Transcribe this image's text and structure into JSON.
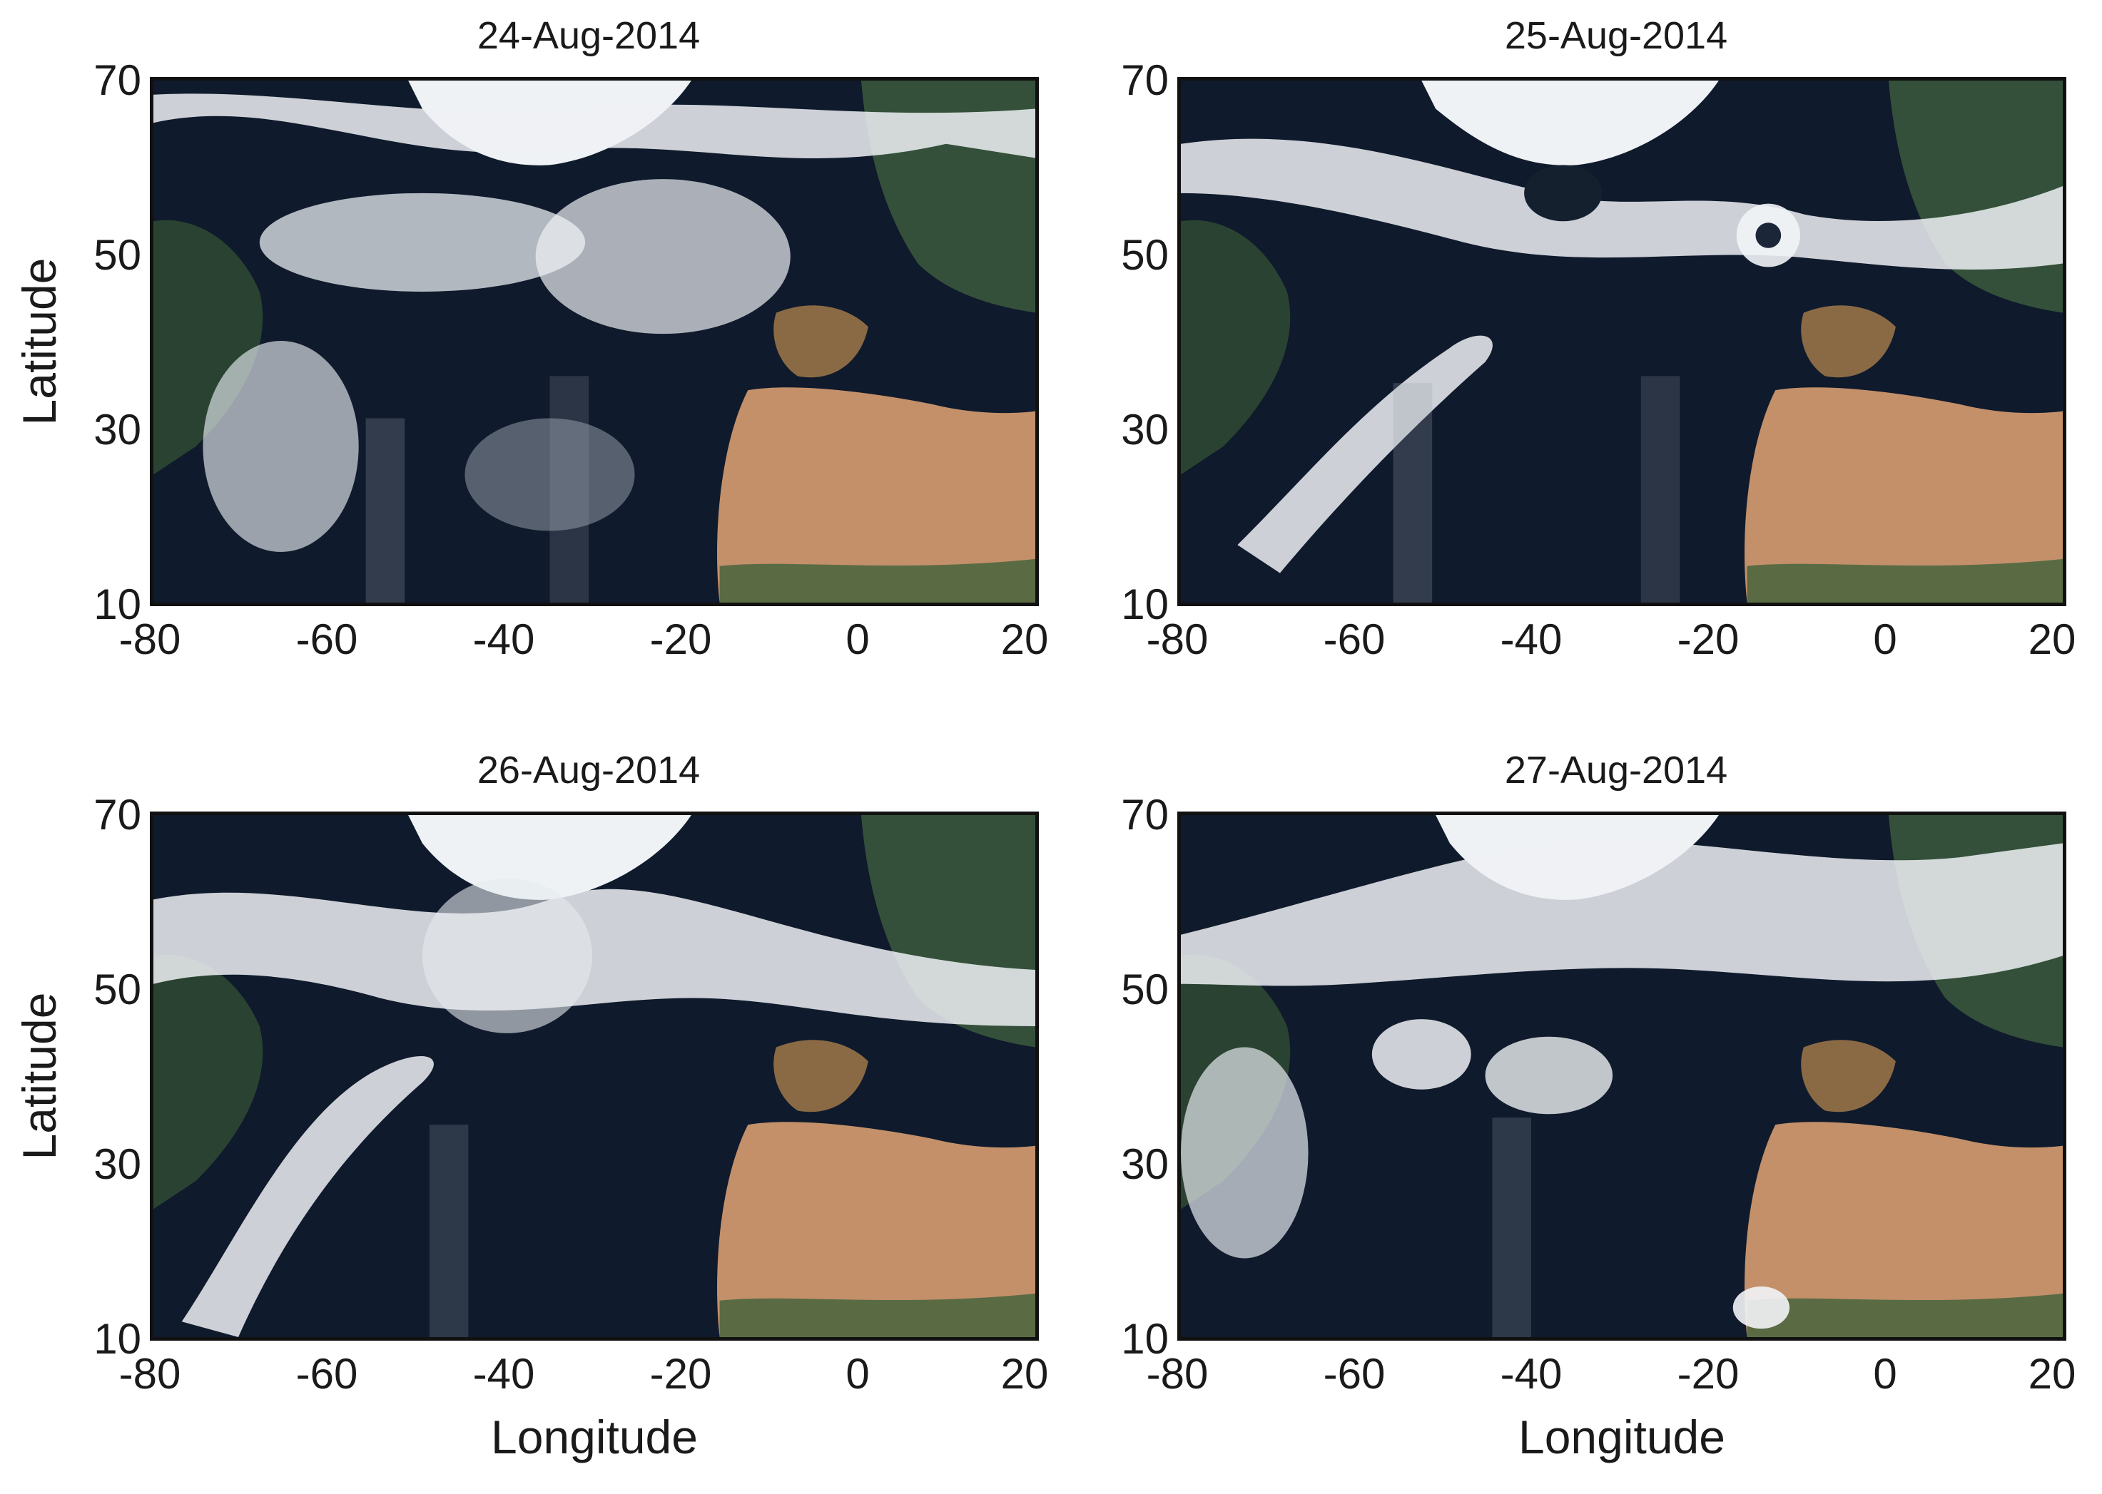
{
  "figure": {
    "panels": [
      {
        "title": "24-Aug-2014",
        "y_axis_label": "Latitude",
        "x_axis_label": "",
        "scene": "satellite-true-color-north-atlantic",
        "date": "24-Aug-2014"
      },
      {
        "title": "25-Aug-2014",
        "y_axis_label": "",
        "x_axis_label": "",
        "scene": "satellite-true-color-north-atlantic",
        "date": "25-Aug-2014"
      },
      {
        "title": "26-Aug-2014",
        "y_axis_label": "Latitude",
        "x_axis_label": "Longitude",
        "scene": "satellite-true-color-north-atlantic",
        "date": "26-Aug-2014"
      },
      {
        "title": "27-Aug-2014",
        "y_axis_label": "",
        "x_axis_label": "Longitude",
        "scene": "satellite-true-color-north-atlantic",
        "date": "27-Aug-2014"
      }
    ],
    "x_ticks": [
      "-80",
      "-60",
      "-40",
      "-20",
      "0",
      "20"
    ],
    "y_ticks": [
      "70",
      "50",
      "30",
      "10"
    ],
    "x_range": [
      -80,
      20
    ],
    "y_range": [
      10,
      70
    ],
    "colors": {
      "ocean": "#0e1a2e",
      "cloud": "#f2f4f7",
      "desert": "#c79465",
      "vegetation": "#3d5a3a",
      "frame": "#111111"
    }
  }
}
